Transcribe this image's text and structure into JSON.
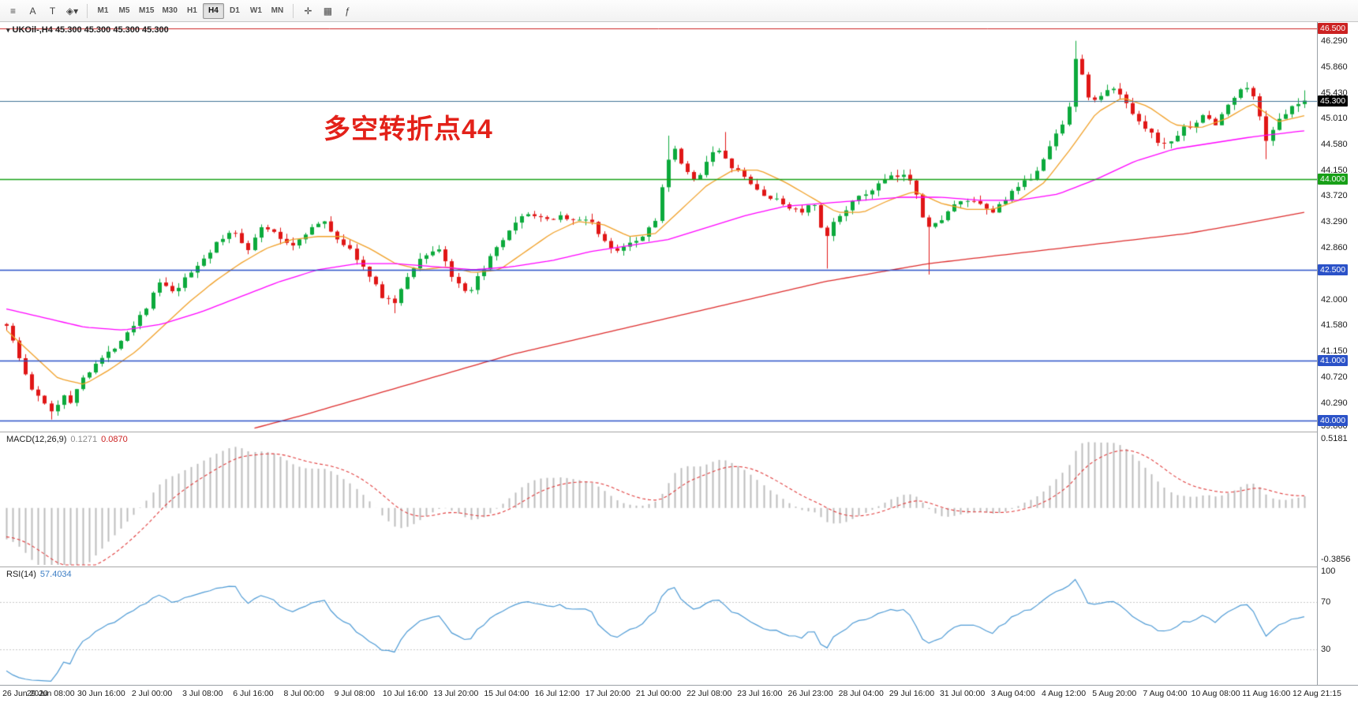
{
  "toolbar": {
    "left_icons": [
      {
        "name": "chart-list-icon",
        "glyph": "≡"
      },
      {
        "name": "text-annotation-icon",
        "glyph": "A"
      },
      {
        "name": "text-label-icon",
        "glyph": "T"
      },
      {
        "name": "objects-dropdown-icon",
        "glyph": "◈▾"
      }
    ],
    "timeframes": [
      {
        "label": "M1"
      },
      {
        "label": "M5"
      },
      {
        "label": "M15"
      },
      {
        "label": "M30"
      },
      {
        "label": "H1"
      },
      {
        "label": "H4",
        "active": true
      },
      {
        "label": "D1"
      },
      {
        "label": "W1"
      },
      {
        "label": "MN"
      }
    ],
    "right_icons": [
      {
        "name": "crosshair-icon",
        "glyph": "✛"
      },
      {
        "name": "tile-windows-icon",
        "glyph": "▦"
      },
      {
        "name": "indicators-list-icon",
        "glyph": "ƒ"
      }
    ]
  },
  "chart_data": {
    "type": "candlestick",
    "symbol": "UKOil-",
    "timeframe": "H4",
    "title": "UKOil-,H4",
    "ohlc_text": "45.300 45.300 45.300 45.300",
    "current_price": 45.3,
    "annotation": {
      "text": "多空转折点44",
      "color": "#e32119"
    },
    "up_color": "#0caa3c",
    "down_color": "#e01616",
    "seed": 1337,
    "candle_count": 205,
    "y_axis": {
      "min": 39.82,
      "max": 46.6,
      "ticks": [
        46.29,
        45.86,
        45.43,
        45.01,
        44.58,
        44.15,
        43.72,
        43.29,
        42.86,
        42.0,
        41.58,
        41.15,
        40.72,
        40.29,
        39.86
      ]
    },
    "price_badges": [
      {
        "price": 46.5,
        "color": "#cc2222"
      },
      {
        "price": 45.3,
        "color": "#000000"
      },
      {
        "price": 44.0,
        "color": "#18a018"
      },
      {
        "price": 42.5,
        "color": "#2b52c8"
      },
      {
        "price": 41.0,
        "color": "#2b52c8"
      },
      {
        "price": 40.0,
        "color": "#2b52c8"
      }
    ],
    "hlines": [
      {
        "price": 46.5,
        "color": "#cc2222",
        "width": 1
      },
      {
        "price": 45.3,
        "color": "#3f7296",
        "width": 1.2
      },
      {
        "price": 44.0,
        "color": "#18a018",
        "width": 1.4
      },
      {
        "price": 42.5,
        "color": "#2b52c8",
        "width": 1.4
      },
      {
        "price": 41.0,
        "color": "#2b52c8",
        "width": 1.4
      },
      {
        "price": 40.0,
        "color": "#2b52c8",
        "width": 1.4
      }
    ],
    "price_path": [
      [
        0.0,
        41.6
      ],
      [
        0.006,
        41.25
      ],
      [
        0.013,
        40.85
      ],
      [
        0.02,
        40.5
      ],
      [
        0.028,
        40.3
      ],
      [
        0.036,
        40.15
      ],
      [
        0.044,
        40.45
      ],
      [
        0.05,
        40.3
      ],
      [
        0.058,
        40.7
      ],
      [
        0.068,
        40.95
      ],
      [
        0.078,
        41.1
      ],
      [
        0.088,
        41.35
      ],
      [
        0.098,
        41.6
      ],
      [
        0.108,
        41.9
      ],
      [
        0.118,
        42.3
      ],
      [
        0.128,
        42.1
      ],
      [
        0.14,
        42.4
      ],
      [
        0.152,
        42.7
      ],
      [
        0.163,
        42.95
      ],
      [
        0.175,
        43.15
      ],
      [
        0.186,
        42.85
      ],
      [
        0.198,
        43.25
      ],
      [
        0.208,
        43.05
      ],
      [
        0.22,
        42.9
      ],
      [
        0.232,
        43.15
      ],
      [
        0.244,
        43.3
      ],
      [
        0.256,
        43.0
      ],
      [
        0.268,
        42.75
      ],
      [
        0.28,
        42.35
      ],
      [
        0.29,
        42.05
      ],
      [
        0.3,
        41.95
      ],
      [
        0.31,
        42.45
      ],
      [
        0.322,
        42.75
      ],
      [
        0.334,
        42.85
      ],
      [
        0.345,
        42.3
      ],
      [
        0.356,
        42.05
      ],
      [
        0.366,
        42.5
      ],
      [
        0.378,
        42.85
      ],
      [
        0.39,
        43.2
      ],
      [
        0.402,
        43.45
      ],
      [
        0.414,
        43.3
      ],
      [
        0.426,
        43.4
      ],
      [
        0.438,
        43.3
      ],
      [
        0.45,
        43.35
      ],
      [
        0.458,
        43.0
      ],
      [
        0.468,
        42.8
      ],
      [
        0.478,
        42.95
      ],
      [
        0.49,
        43.05
      ],
      [
        0.5,
        43.35
      ],
      [
        0.508,
        44.2
      ],
      [
        0.514,
        44.5
      ],
      [
        0.522,
        44.15
      ],
      [
        0.53,
        43.95
      ],
      [
        0.538,
        44.25
      ],
      [
        0.546,
        44.55
      ],
      [
        0.554,
        44.3
      ],
      [
        0.562,
        44.15
      ],
      [
        0.572,
        43.95
      ],
      [
        0.582,
        43.75
      ],
      [
        0.592,
        43.65
      ],
      [
        0.602,
        43.55
      ],
      [
        0.612,
        43.45
      ],
      [
        0.622,
        43.6
      ],
      [
        0.63,
        42.95
      ],
      [
        0.638,
        43.3
      ],
      [
        0.648,
        43.55
      ],
      [
        0.658,
        43.7
      ],
      [
        0.668,
        43.85
      ],
      [
        0.678,
        44.0
      ],
      [
        0.688,
        44.05
      ],
      [
        0.698,
        44.0
      ],
      [
        0.706,
        43.4
      ],
      [
        0.712,
        43.15
      ],
      [
        0.72,
        43.35
      ],
      [
        0.73,
        43.55
      ],
      [
        0.74,
        43.65
      ],
      [
        0.75,
        43.55
      ],
      [
        0.76,
        43.45
      ],
      [
        0.77,
        43.7
      ],
      [
        0.78,
        43.85
      ],
      [
        0.79,
        44.05
      ],
      [
        0.8,
        44.35
      ],
      [
        0.81,
        44.8
      ],
      [
        0.818,
        45.1
      ],
      [
        0.824,
        46.1
      ],
      [
        0.83,
        45.55
      ],
      [
        0.836,
        45.25
      ],
      [
        0.844,
        45.4
      ],
      [
        0.852,
        45.5
      ],
      [
        0.86,
        45.35
      ],
      [
        0.868,
        45.1
      ],
      [
        0.876,
        44.9
      ],
      [
        0.884,
        44.7
      ],
      [
        0.892,
        44.55
      ],
      [
        0.9,
        44.7
      ],
      [
        0.908,
        44.85
      ],
      [
        0.916,
        44.95
      ],
      [
        0.924,
        45.05
      ],
      [
        0.932,
        44.9
      ],
      [
        0.94,
        45.2
      ],
      [
        0.948,
        45.4
      ],
      [
        0.956,
        45.55
      ],
      [
        0.964,
        45.2
      ],
      [
        0.97,
        44.65
      ],
      [
        0.976,
        44.85
      ],
      [
        0.984,
        45.05
      ],
      [
        0.992,
        45.2
      ],
      [
        1.0,
        45.3
      ]
    ],
    "wick_events": [
      {
        "t": 0.036,
        "type": "low",
        "price": 40.02
      },
      {
        "t": 0.3,
        "type": "low",
        "price": 41.78
      },
      {
        "t": 0.508,
        "type": "high",
        "price": 44.72
      },
      {
        "t": 0.554,
        "type": "high",
        "price": 44.78
      },
      {
        "t": 0.63,
        "type": "low",
        "price": 42.52
      },
      {
        "t": 0.712,
        "type": "low",
        "price": 42.42
      },
      {
        "t": 0.824,
        "type": "high",
        "price": 46.29
      },
      {
        "t": 0.97,
        "type": "low",
        "price": 44.33
      },
      {
        "t": 1.0,
        "type": "high",
        "price": 45.47
      }
    ],
    "moving_averages": [
      {
        "name": "ma-fast",
        "color": "#f0a028",
        "points": [
          [
            0.0,
            41.5
          ],
          [
            0.02,
            41.1
          ],
          [
            0.04,
            40.7
          ],
          [
            0.06,
            40.6
          ],
          [
            0.08,
            40.85
          ],
          [
            0.1,
            41.15
          ],
          [
            0.12,
            41.55
          ],
          [
            0.14,
            41.95
          ],
          [
            0.16,
            42.3
          ],
          [
            0.18,
            42.6
          ],
          [
            0.2,
            42.85
          ],
          [
            0.22,
            43.0
          ],
          [
            0.24,
            43.05
          ],
          [
            0.26,
            43.05
          ],
          [
            0.28,
            42.85
          ],
          [
            0.3,
            42.6
          ],
          [
            0.32,
            42.5
          ],
          [
            0.34,
            42.55
          ],
          [
            0.36,
            42.45
          ],
          [
            0.38,
            42.5
          ],
          [
            0.4,
            42.8
          ],
          [
            0.42,
            43.1
          ],
          [
            0.44,
            43.3
          ],
          [
            0.46,
            43.25
          ],
          [
            0.48,
            43.05
          ],
          [
            0.5,
            43.1
          ],
          [
            0.52,
            43.5
          ],
          [
            0.54,
            43.9
          ],
          [
            0.56,
            44.15
          ],
          [
            0.58,
            44.15
          ],
          [
            0.6,
            43.95
          ],
          [
            0.62,
            43.7
          ],
          [
            0.64,
            43.45
          ],
          [
            0.66,
            43.45
          ],
          [
            0.68,
            43.65
          ],
          [
            0.7,
            43.8
          ],
          [
            0.72,
            43.6
          ],
          [
            0.74,
            43.5
          ],
          [
            0.76,
            43.5
          ],
          [
            0.78,
            43.65
          ],
          [
            0.8,
            43.95
          ],
          [
            0.82,
            44.5
          ],
          [
            0.84,
            45.1
          ],
          [
            0.86,
            45.35
          ],
          [
            0.88,
            45.2
          ],
          [
            0.9,
            44.9
          ],
          [
            0.92,
            44.85
          ],
          [
            0.94,
            45.0
          ],
          [
            0.96,
            45.25
          ],
          [
            0.98,
            44.95
          ],
          [
            1.0,
            45.05
          ]
        ]
      },
      {
        "name": "ma-mid",
        "color": "#ff00ff",
        "points": [
          [
            0.0,
            41.85
          ],
          [
            0.03,
            41.7
          ],
          [
            0.06,
            41.55
          ],
          [
            0.09,
            41.5
          ],
          [
            0.12,
            41.6
          ],
          [
            0.15,
            41.8
          ],
          [
            0.18,
            42.05
          ],
          [
            0.21,
            42.3
          ],
          [
            0.24,
            42.5
          ],
          [
            0.27,
            42.6
          ],
          [
            0.3,
            42.6
          ],
          [
            0.33,
            42.55
          ],
          [
            0.36,
            42.5
          ],
          [
            0.39,
            42.55
          ],
          [
            0.42,
            42.65
          ],
          [
            0.45,
            42.8
          ],
          [
            0.48,
            42.9
          ],
          [
            0.51,
            43.0
          ],
          [
            0.54,
            43.2
          ],
          [
            0.57,
            43.4
          ],
          [
            0.6,
            43.55
          ],
          [
            0.63,
            43.6
          ],
          [
            0.66,
            43.65
          ],
          [
            0.69,
            43.7
          ],
          [
            0.72,
            43.7
          ],
          [
            0.75,
            43.65
          ],
          [
            0.78,
            43.65
          ],
          [
            0.81,
            43.75
          ],
          [
            0.84,
            44.0
          ],
          [
            0.87,
            44.3
          ],
          [
            0.9,
            44.5
          ],
          [
            0.93,
            44.6
          ],
          [
            0.96,
            44.7
          ],
          [
            1.0,
            44.8
          ]
        ]
      },
      {
        "name": "ma-slow",
        "color": "#dd2c2c",
        "points": [
          [
            0.19,
            39.87
          ],
          [
            0.23,
            40.1
          ],
          [
            0.27,
            40.35
          ],
          [
            0.31,
            40.6
          ],
          [
            0.35,
            40.85
          ],
          [
            0.39,
            41.1
          ],
          [
            0.43,
            41.3
          ],
          [
            0.47,
            41.5
          ],
          [
            0.51,
            41.7
          ],
          [
            0.55,
            41.9
          ],
          [
            0.59,
            42.1
          ],
          [
            0.63,
            42.3
          ],
          [
            0.67,
            42.45
          ],
          [
            0.71,
            42.6
          ],
          [
            0.75,
            42.7
          ],
          [
            0.79,
            42.8
          ],
          [
            0.83,
            42.9
          ],
          [
            0.87,
            43.0
          ],
          [
            0.91,
            43.1
          ],
          [
            0.95,
            43.25
          ],
          [
            1.0,
            43.45
          ]
        ]
      }
    ],
    "macd": {
      "label": "MACD(12,26,9)",
      "value_main": "0.1271",
      "value_signal": "0.0870",
      "fast": 12,
      "slow": 26,
      "signal": 9,
      "range": [
        -0.4356,
        0.5681
      ],
      "ticks": [
        "0.5181",
        "-0.3856"
      ],
      "tick_values": [
        0.5181,
        -0.3856
      ],
      "hist_color": "#bdbdbd",
      "signal_color": "#e03c3c"
    },
    "rsi": {
      "label": "RSI(14)",
      "value": "57.4034",
      "period": 14,
      "range": [
        0,
        100
      ],
      "ticks": [
        "100",
        "70",
        "30"
      ],
      "tick_values": [
        100,
        70,
        30
      ],
      "levels": [
        70,
        30
      ],
      "color": "#4f9bd5"
    },
    "x_axis_labels": [
      "26 Jun 2020",
      "29 Jun 08:00",
      "30 Jun 16:00",
      "2 Jul 00:00",
      "3 Jul 08:00",
      "6 Jul 16:00",
      "8 Jul 00:00",
      "9 Jul 08:00",
      "10 Jul 16:00",
      "13 Jul 20:00",
      "15 Jul 04:00",
      "16 Jul 12:00",
      "17 Jul 20:00",
      "21 Jul 00:00",
      "22 Jul 08:00",
      "23 Jul 16:00",
      "26 Jul 23:00",
      "28 Jul 04:00",
      "29 Jul 16:00",
      "31 Jul 00:00",
      "3 Aug 04:00",
      "4 Aug 12:00",
      "5 Aug 20:00",
      "7 Aug 04:00",
      "10 Aug 08:00",
      "11 Aug 16:00",
      "12 Aug 21:15"
    ]
  }
}
